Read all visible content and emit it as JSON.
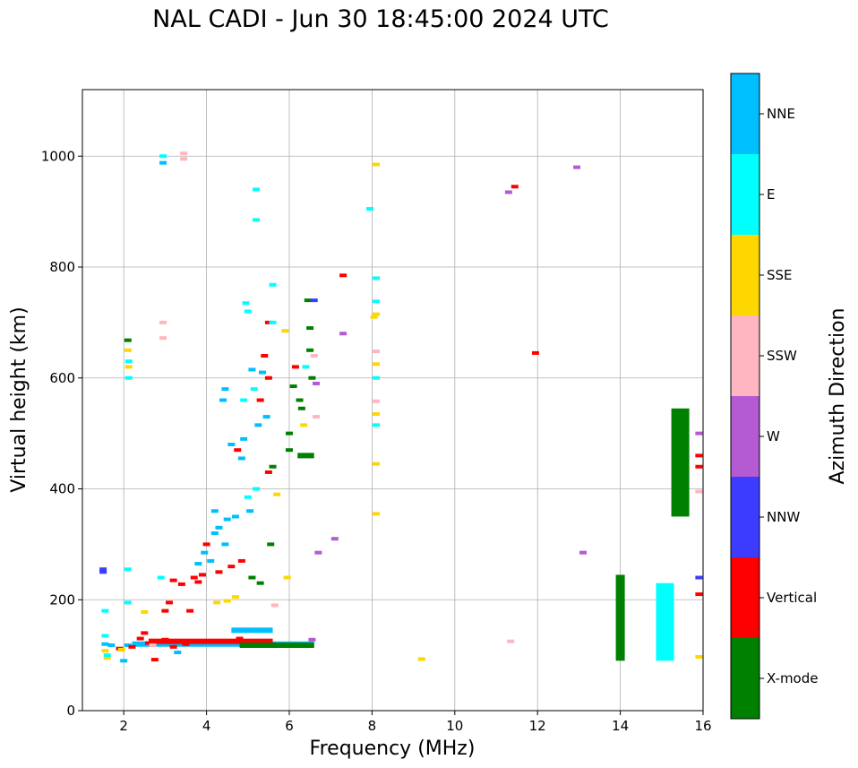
{
  "chart_data": {
    "type": "scatter",
    "title": "NAL CADI - Jun 30 18:45:00 2024 UTC",
    "xlabel": "Frequency (MHz)",
    "ylabel": "Virtual height (km)",
    "xlim": [
      1,
      16
    ],
    "ylim": [
      0,
      1120
    ],
    "xticks": [
      2,
      4,
      6,
      8,
      10,
      12,
      14,
      16
    ],
    "yticks": [
      0,
      200,
      400,
      600,
      800,
      1000
    ],
    "grid": true,
    "colorbar": {
      "title": "Azimuth Direction",
      "categories": [
        {
          "name": "X-mode",
          "color": "#008000"
        },
        {
          "name": "Vertical",
          "color": "#ff0000"
        },
        {
          "name": "NNW",
          "color": "#3c3cff"
        },
        {
          "name": "W",
          "color": "#b45ad2"
        },
        {
          "name": "SSW",
          "color": "#ffb6c1"
        },
        {
          "name": "SSE",
          "color": "#ffd700"
        },
        {
          "name": "E",
          "color": "#00ffff"
        },
        {
          "name": "NNE",
          "color": "#00bfff"
        }
      ]
    },
    "points": [
      {
        "f": 1.5,
        "h": 255,
        "c": "NNW"
      },
      {
        "f": 1.5,
        "h": 250,
        "c": "NNW"
      },
      {
        "f": 1.55,
        "h": 180,
        "c": "E"
      },
      {
        "f": 1.55,
        "h": 135,
        "c": "E"
      },
      {
        "f": 1.55,
        "h": 120,
        "c": "NNE"
      },
      {
        "f": 1.55,
        "h": 108,
        "c": "SSE"
      },
      {
        "f": 1.6,
        "h": 95,
        "c": "SSE"
      },
      {
        "f": 1.6,
        "h": 100,
        "c": "E"
      },
      {
        "f": 1.7,
        "h": 118,
        "c": "NNE"
      },
      {
        "f": 1.9,
        "h": 112,
        "c": "Vertical"
      },
      {
        "f": 1.95,
        "h": 110,
        "c": "SSE"
      },
      {
        "f": 2.1,
        "h": 118,
        "c": "NNE"
      },
      {
        "f": 2.1,
        "h": 668,
        "c": "X-mode"
      },
      {
        "f": 2.1,
        "h": 650,
        "c": "SSE"
      },
      {
        "f": 2.12,
        "h": 630,
        "c": "E"
      },
      {
        "f": 2.12,
        "h": 620,
        "c": "SSE"
      },
      {
        "f": 2.12,
        "h": 600,
        "c": "E"
      },
      {
        "f": 2.1,
        "h": 255,
        "c": "E"
      },
      {
        "f": 2.1,
        "h": 195,
        "c": "E"
      },
      {
        "f": 2.0,
        "h": 90,
        "c": "NNE"
      },
      {
        "f": 2.2,
        "h": 115,
        "c": "Vertical"
      },
      {
        "f": 2.4,
        "h": 130,
        "c": "Vertical"
      },
      {
        "f": 2.5,
        "h": 140,
        "c": "Vertical"
      },
      {
        "f": 2.5,
        "h": 178,
        "c": "SSE"
      },
      {
        "f": 2.6,
        "h": 122,
        "c": "Vertical"
      },
      {
        "f": 2.7,
        "h": 118,
        "c": "SSW"
      },
      {
        "f": 2.75,
        "h": 92,
        "c": "Vertical"
      },
      {
        "f": 2.8,
        "h": 125,
        "c": "Vertical"
      },
      {
        "f": 2.9,
        "h": 240,
        "c": "E"
      },
      {
        "f": 2.95,
        "h": 1000,
        "c": "E"
      },
      {
        "f": 2.95,
        "h": 988,
        "c": "NNE"
      },
      {
        "f": 2.95,
        "h": 700,
        "c": "SSW"
      },
      {
        "f": 2.95,
        "h": 672,
        "c": "SSW"
      },
      {
        "f": 3.0,
        "h": 128,
        "c": "Vertical"
      },
      {
        "f": 3.0,
        "h": 180,
        "c": "Vertical"
      },
      {
        "f": 3.1,
        "h": 195,
        "c": "Vertical"
      },
      {
        "f": 3.2,
        "h": 115,
        "c": "Vertical"
      },
      {
        "f": 3.2,
        "h": 235,
        "c": "Vertical"
      },
      {
        "f": 3.3,
        "h": 105,
        "c": "NNE"
      },
      {
        "f": 3.4,
        "h": 228,
        "c": "Vertical"
      },
      {
        "f": 3.45,
        "h": 1005,
        "c": "SSW"
      },
      {
        "f": 3.45,
        "h": 995,
        "c": "SSW"
      },
      {
        "f": 3.5,
        "h": 120,
        "c": "Vertical"
      },
      {
        "f": 3.6,
        "h": 180,
        "c": "Vertical"
      },
      {
        "f": 3.7,
        "h": 240,
        "c": "Vertical"
      },
      {
        "f": 3.8,
        "h": 232,
        "c": "Vertical"
      },
      {
        "f": 3.8,
        "h": 265,
        "c": "NNE"
      },
      {
        "f": 3.9,
        "h": 245,
        "c": "Vertical"
      },
      {
        "f": 3.95,
        "h": 285,
        "c": "NNE"
      },
      {
        "f": 4.0,
        "h": 300,
        "c": "Vertical"
      },
      {
        "f": 4.0,
        "h": 125,
        "c": "Vertical"
      },
      {
        "f": 4.1,
        "h": 270,
        "c": "NNE"
      },
      {
        "f": 4.2,
        "h": 320,
        "c": "NNE"
      },
      {
        "f": 4.2,
        "h": 360,
        "c": "NNE"
      },
      {
        "f": 4.25,
        "h": 195,
        "c": "SSE"
      },
      {
        "f": 4.3,
        "h": 330,
        "c": "NNE"
      },
      {
        "f": 4.3,
        "h": 250,
        "c": "Vertical"
      },
      {
        "f": 4.4,
        "h": 560,
        "c": "NNE"
      },
      {
        "f": 4.45,
        "h": 580,
        "c": "NNE"
      },
      {
        "f": 4.45,
        "h": 300,
        "c": "NNE"
      },
      {
        "f": 4.5,
        "h": 198,
        "c": "SSE"
      },
      {
        "f": 4.5,
        "h": 345,
        "c": "NNE"
      },
      {
        "f": 4.6,
        "h": 480,
        "c": "NNE"
      },
      {
        "f": 4.6,
        "h": 260,
        "c": "Vertical"
      },
      {
        "f": 4.7,
        "h": 205,
        "c": "SSE"
      },
      {
        "f": 4.7,
        "h": 350,
        "c": "NNE"
      },
      {
        "f": 4.75,
        "h": 470,
        "c": "Vertical"
      },
      {
        "f": 4.8,
        "h": 130,
        "c": "Vertical"
      },
      {
        "f": 4.85,
        "h": 455,
        "c": "NNE"
      },
      {
        "f": 4.85,
        "h": 270,
        "c": "Vertical"
      },
      {
        "f": 4.9,
        "h": 560,
        "c": "E"
      },
      {
        "f": 4.9,
        "h": 490,
        "c": "NNE"
      },
      {
        "f": 4.95,
        "h": 735,
        "c": "E"
      },
      {
        "f": 5.0,
        "h": 720,
        "c": "E"
      },
      {
        "f": 5.0,
        "h": 385,
        "c": "E"
      },
      {
        "f": 5.05,
        "h": 360,
        "c": "NNE"
      },
      {
        "f": 5.05,
        "h": 145,
        "c": "NNE"
      },
      {
        "f": 5.1,
        "h": 615,
        "c": "NNE"
      },
      {
        "f": 5.1,
        "h": 240,
        "c": "X-mode"
      },
      {
        "f": 5.15,
        "h": 580,
        "c": "E"
      },
      {
        "f": 5.2,
        "h": 940,
        "c": "E"
      },
      {
        "f": 5.2,
        "h": 885,
        "c": "E"
      },
      {
        "f": 5.2,
        "h": 400,
        "c": "E"
      },
      {
        "f": 5.25,
        "h": 515,
        "c": "NNE"
      },
      {
        "f": 5.3,
        "h": 560,
        "c": "Vertical"
      },
      {
        "f": 5.3,
        "h": 230,
        "c": "X-mode"
      },
      {
        "f": 5.35,
        "h": 610,
        "c": "NNE"
      },
      {
        "f": 5.4,
        "h": 640,
        "c": "Vertical"
      },
      {
        "f": 5.45,
        "h": 530,
        "c": "NNE"
      },
      {
        "f": 5.5,
        "h": 700,
        "c": "Vertical"
      },
      {
        "f": 5.5,
        "h": 600,
        "c": "Vertical"
      },
      {
        "f": 5.5,
        "h": 430,
        "c": "Vertical"
      },
      {
        "f": 5.55,
        "h": 300,
        "c": "X-mode"
      },
      {
        "f": 5.6,
        "h": 700,
        "c": "E"
      },
      {
        "f": 5.6,
        "h": 768,
        "c": "E"
      },
      {
        "f": 5.6,
        "h": 440,
        "c": "X-mode"
      },
      {
        "f": 5.65,
        "h": 190,
        "c": "SSW"
      },
      {
        "f": 5.7,
        "h": 390,
        "c": "SSE"
      },
      {
        "f": 5.9,
        "h": 685,
        "c": "SSE"
      },
      {
        "f": 5.95,
        "h": 240,
        "c": "SSE"
      },
      {
        "f": 6.0,
        "h": 500,
        "c": "X-mode"
      },
      {
        "f": 6.0,
        "h": 470,
        "c": "X-mode"
      },
      {
        "f": 6.1,
        "h": 585,
        "c": "X-mode"
      },
      {
        "f": 6.15,
        "h": 620,
        "c": "Vertical"
      },
      {
        "f": 6.25,
        "h": 560,
        "c": "X-mode"
      },
      {
        "f": 6.3,
        "h": 545,
        "c": "X-mode"
      },
      {
        "f": 6.35,
        "h": 515,
        "c": "SSE"
      },
      {
        "f": 6.4,
        "h": 620,
        "c": "E"
      },
      {
        "f": 6.45,
        "h": 740,
        "c": "X-mode"
      },
      {
        "f": 6.5,
        "h": 690,
        "c": "X-mode"
      },
      {
        "f": 6.5,
        "h": 650,
        "c": "X-mode"
      },
      {
        "f": 6.55,
        "h": 600,
        "c": "X-mode"
      },
      {
        "f": 6.6,
        "h": 640,
        "c": "SSW"
      },
      {
        "f": 6.6,
        "h": 740,
        "c": "NNW"
      },
      {
        "f": 6.65,
        "h": 530,
        "c": "SSW"
      },
      {
        "f": 6.65,
        "h": 590,
        "c": "W"
      },
      {
        "f": 6.7,
        "h": 285,
        "c": "W"
      },
      {
        "f": 6.55,
        "h": 128,
        "c": "W"
      },
      {
        "f": 7.1,
        "h": 310,
        "c": "W"
      },
      {
        "f": 7.3,
        "h": 785,
        "c": "Vertical"
      },
      {
        "f": 7.3,
        "h": 680,
        "c": "W"
      },
      {
        "f": 7.95,
        "h": 905,
        "c": "E"
      },
      {
        "f": 8.05,
        "h": 710,
        "c": "SSE"
      },
      {
        "f": 8.1,
        "h": 985,
        "c": "SSE"
      },
      {
        "f": 8.1,
        "h": 780,
        "c": "E"
      },
      {
        "f": 8.1,
        "h": 738,
        "c": "E"
      },
      {
        "f": 8.1,
        "h": 715,
        "c": "SSE"
      },
      {
        "f": 8.1,
        "h": 648,
        "c": "SSW"
      },
      {
        "f": 8.1,
        "h": 625,
        "c": "SSE"
      },
      {
        "f": 8.1,
        "h": 600,
        "c": "E"
      },
      {
        "f": 8.1,
        "h": 558,
        "c": "SSW"
      },
      {
        "f": 8.1,
        "h": 535,
        "c": "SSE"
      },
      {
        "f": 8.1,
        "h": 515,
        "c": "E"
      },
      {
        "f": 8.1,
        "h": 445,
        "c": "SSE"
      },
      {
        "f": 8.1,
        "h": 355,
        "c": "SSE"
      },
      {
        "f": 9.2,
        "h": 93,
        "c": "SSE"
      },
      {
        "f": 11.3,
        "h": 935,
        "c": "W"
      },
      {
        "f": 11.45,
        "h": 945,
        "c": "Vertical"
      },
      {
        "f": 11.35,
        "h": 125,
        "c": "SSW"
      },
      {
        "f": 11.95,
        "h": 645,
        "c": "Vertical"
      },
      {
        "f": 12.95,
        "h": 980,
        "c": "W"
      },
      {
        "f": 13.1,
        "h": 285,
        "c": "W"
      },
      {
        "f": 15.9,
        "h": 500,
        "c": "W"
      },
      {
        "f": 15.9,
        "h": 460,
        "c": "Vertical"
      },
      {
        "f": 15.9,
        "h": 440,
        "c": "Vertical"
      },
      {
        "f": 15.9,
        "h": 395,
        "c": "SSW"
      },
      {
        "f": 15.9,
        "h": 240,
        "c": "NNW"
      },
      {
        "f": 15.9,
        "h": 210,
        "c": "Vertical"
      },
      {
        "f": 15.9,
        "h": 97,
        "c": "SSE"
      }
    ],
    "columns": [
      {
        "f": 14.0,
        "h0": 90,
        "h1": 245,
        "c": "X-mode"
      },
      {
        "f": 15.08,
        "h0": 90,
        "h1": 230,
        "c": "E"
      },
      {
        "f": 15.45,
        "h0": 350,
        "h1": 545,
        "c": "X-mode"
      }
    ],
    "horizontal_bands": [
      {
        "f0": 2.2,
        "f1": 6.6,
        "h": 120,
        "c": "NNE"
      },
      {
        "f0": 2.6,
        "f1": 5.6,
        "h": 125,
        "c": "Vertical"
      },
      {
        "f0": 4.8,
        "f1": 6.6,
        "h": 118,
        "c": "X-mode"
      },
      {
        "f0": 4.6,
        "f1": 5.6,
        "h": 145,
        "c": "NNE"
      },
      {
        "f0": 6.2,
        "f1": 6.6,
        "h": 460,
        "c": "X-mode"
      }
    ]
  }
}
